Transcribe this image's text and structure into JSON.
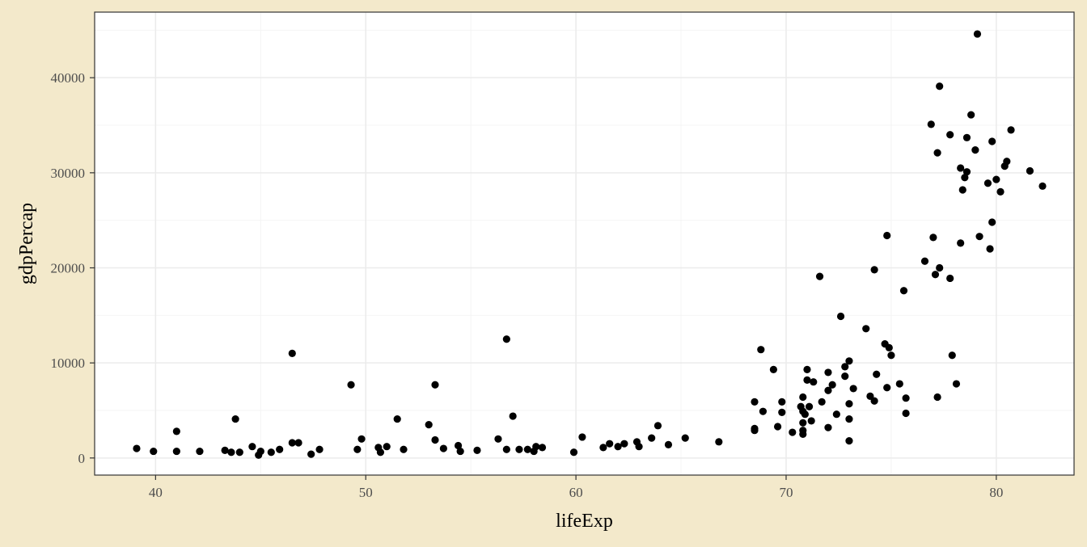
{
  "colors": {
    "background": "#F3E9CB",
    "panel": "#FFFFFF",
    "grid_major": "#EBEBEB",
    "grid_minor": "#F4F4F4",
    "border": "#333333",
    "points": "#000000"
  },
  "chart_data": {
    "type": "scatter",
    "title": "",
    "xlabel": "lifeExp",
    "ylabel": "gdpPercap",
    "xlim": [
      37.1,
      83.7
    ],
    "ylim": [
      -1800,
      46900
    ],
    "x_ticks": [
      40,
      50,
      60,
      70,
      80
    ],
    "x_tick_labels": [
      "40",
      "50",
      "60",
      "70",
      "80"
    ],
    "y_ticks": [
      0,
      10000,
      20000,
      30000,
      40000
    ],
    "y_tick_labels": [
      "0",
      "10000",
      "20000",
      "30000",
      "40000"
    ],
    "grid": true,
    "legend": "none",
    "points": [
      {
        "x": 39.1,
        "y": 1000
      },
      {
        "x": 39.9,
        "y": 700
      },
      {
        "x": 41.0,
        "y": 2800
      },
      {
        "x": 41.0,
        "y": 700
      },
      {
        "x": 42.1,
        "y": 700
      },
      {
        "x": 43.3,
        "y": 800
      },
      {
        "x": 43.6,
        "y": 600
      },
      {
        "x": 43.8,
        "y": 4100
      },
      {
        "x": 44.0,
        "y": 600
      },
      {
        "x": 44.6,
        "y": 1200
      },
      {
        "x": 44.9,
        "y": 300
      },
      {
        "x": 45.0,
        "y": 700
      },
      {
        "x": 45.5,
        "y": 600
      },
      {
        "x": 45.9,
        "y": 900
      },
      {
        "x": 46.5,
        "y": 1600
      },
      {
        "x": 46.8,
        "y": 1600
      },
      {
        "x": 46.5,
        "y": 11000
      },
      {
        "x": 47.4,
        "y": 400
      },
      {
        "x": 47.8,
        "y": 900
      },
      {
        "x": 49.3,
        "y": 7700
      },
      {
        "x": 49.6,
        "y": 900
      },
      {
        "x": 49.8,
        "y": 2000
      },
      {
        "x": 50.6,
        "y": 1100
      },
      {
        "x": 50.7,
        "y": 600
      },
      {
        "x": 51.0,
        "y": 1200
      },
      {
        "x": 51.5,
        "y": 4100
      },
      {
        "x": 51.8,
        "y": 900
      },
      {
        "x": 53.0,
        "y": 3500
      },
      {
        "x": 53.3,
        "y": 7700
      },
      {
        "x": 53.3,
        "y": 1900
      },
      {
        "x": 53.7,
        "y": 1000
      },
      {
        "x": 54.4,
        "y": 1300
      },
      {
        "x": 54.5,
        "y": 700
      },
      {
        "x": 55.3,
        "y": 800
      },
      {
        "x": 56.3,
        "y": 2000
      },
      {
        "x": 56.7,
        "y": 12500
      },
      {
        "x": 56.7,
        "y": 900
      },
      {
        "x": 57.0,
        "y": 4400
      },
      {
        "x": 57.3,
        "y": 900
      },
      {
        "x": 57.7,
        "y": 900
      },
      {
        "x": 58.0,
        "y": 700
      },
      {
        "x": 58.1,
        "y": 1200
      },
      {
        "x": 58.4,
        "y": 1100
      },
      {
        "x": 59.9,
        "y": 600
      },
      {
        "x": 60.3,
        "y": 2200
      },
      {
        "x": 61.3,
        "y": 1100
      },
      {
        "x": 61.6,
        "y": 1500
      },
      {
        "x": 62.0,
        "y": 1200
      },
      {
        "x": 62.3,
        "y": 1500
      },
      {
        "x": 62.9,
        "y": 1700
      },
      {
        "x": 63.0,
        "y": 1200
      },
      {
        "x": 63.6,
        "y": 2100
      },
      {
        "x": 63.9,
        "y": 3400
      },
      {
        "x": 64.4,
        "y": 1400
      },
      {
        "x": 65.2,
        "y": 2100
      },
      {
        "x": 66.8,
        "y": 1700
      },
      {
        "x": 68.5,
        "y": 5900
      },
      {
        "x": 68.5,
        "y": 3100
      },
      {
        "x": 68.5,
        "y": 2900
      },
      {
        "x": 68.8,
        "y": 11400
      },
      {
        "x": 68.9,
        "y": 4900
      },
      {
        "x": 69.4,
        "y": 9300
      },
      {
        "x": 69.6,
        "y": 3300
      },
      {
        "x": 69.8,
        "y": 5900
      },
      {
        "x": 69.8,
        "y": 4800
      },
      {
        "x": 70.3,
        "y": 2700
      },
      {
        "x": 70.7,
        "y": 5400
      },
      {
        "x": 70.8,
        "y": 4900
      },
      {
        "x": 70.8,
        "y": 6400
      },
      {
        "x": 70.8,
        "y": 2900
      },
      {
        "x": 70.8,
        "y": 2500
      },
      {
        "x": 70.8,
        "y": 3700
      },
      {
        "x": 70.9,
        "y": 4600
      },
      {
        "x": 71.0,
        "y": 9300
      },
      {
        "x": 71.0,
        "y": 8200
      },
      {
        "x": 71.1,
        "y": 5400
      },
      {
        "x": 71.2,
        "y": 3900
      },
      {
        "x": 71.3,
        "y": 8000
      },
      {
        "x": 71.6,
        "y": 19100
      },
      {
        "x": 71.7,
        "y": 5900
      },
      {
        "x": 72.0,
        "y": 9000
      },
      {
        "x": 72.0,
        "y": 7100
      },
      {
        "x": 72.0,
        "y": 3200
      },
      {
        "x": 72.2,
        "y": 7700
      },
      {
        "x": 72.4,
        "y": 4600
      },
      {
        "x": 72.6,
        "y": 14900
      },
      {
        "x": 72.8,
        "y": 8600
      },
      {
        "x": 72.8,
        "y": 9600
      },
      {
        "x": 73.0,
        "y": 10200
      },
      {
        "x": 73.0,
        "y": 4100
      },
      {
        "x": 73.0,
        "y": 5700
      },
      {
        "x": 73.0,
        "y": 1800
      },
      {
        "x": 73.2,
        "y": 7300
      },
      {
        "x": 73.8,
        "y": 13600
      },
      {
        "x": 74.0,
        "y": 6500
      },
      {
        "x": 74.2,
        "y": 6000
      },
      {
        "x": 74.2,
        "y": 19800
      },
      {
        "x": 74.3,
        "y": 8800
      },
      {
        "x": 74.7,
        "y": 12000
      },
      {
        "x": 74.8,
        "y": 7400
      },
      {
        "x": 74.9,
        "y": 11600
      },
      {
        "x": 75.0,
        "y": 10800
      },
      {
        "x": 74.8,
        "y": 23400
      },
      {
        "x": 75.4,
        "y": 7800
      },
      {
        "x": 75.6,
        "y": 17600
      },
      {
        "x": 75.7,
        "y": 4700
      },
      {
        "x": 75.7,
        "y": 6300
      },
      {
        "x": 76.6,
        "y": 20700
      },
      {
        "x": 76.9,
        "y": 35100
      },
      {
        "x": 77.0,
        "y": 23200
      },
      {
        "x": 77.1,
        "y": 19300
      },
      {
        "x": 77.2,
        "y": 6400
      },
      {
        "x": 77.2,
        "y": 32100
      },
      {
        "x": 77.3,
        "y": 20000
      },
      {
        "x": 77.3,
        "y": 39100
      },
      {
        "x": 77.8,
        "y": 18900
      },
      {
        "x": 77.8,
        "y": 34000
      },
      {
        "x": 77.9,
        "y": 10800
      },
      {
        "x": 78.1,
        "y": 7800
      },
      {
        "x": 78.3,
        "y": 22600
      },
      {
        "x": 78.3,
        "y": 30500
      },
      {
        "x": 78.4,
        "y": 28200
      },
      {
        "x": 78.5,
        "y": 29500
      },
      {
        "x": 78.6,
        "y": 33700
      },
      {
        "x": 78.6,
        "y": 30100
      },
      {
        "x": 78.8,
        "y": 36100
      },
      {
        "x": 79.0,
        "y": 32400
      },
      {
        "x": 79.1,
        "y": 44600
      },
      {
        "x": 79.2,
        "y": 23300
      },
      {
        "x": 79.6,
        "y": 28900
      },
      {
        "x": 79.7,
        "y": 22000
      },
      {
        "x": 79.8,
        "y": 33300
      },
      {
        "x": 79.8,
        "y": 24800
      },
      {
        "x": 80.0,
        "y": 29300
      },
      {
        "x": 80.2,
        "y": 28000
      },
      {
        "x": 80.4,
        "y": 30700
      },
      {
        "x": 80.5,
        "y": 31200
      },
      {
        "x": 80.7,
        "y": 34500
      },
      {
        "x": 81.6,
        "y": 30200
      },
      {
        "x": 82.2,
        "y": 28600
      }
    ]
  }
}
